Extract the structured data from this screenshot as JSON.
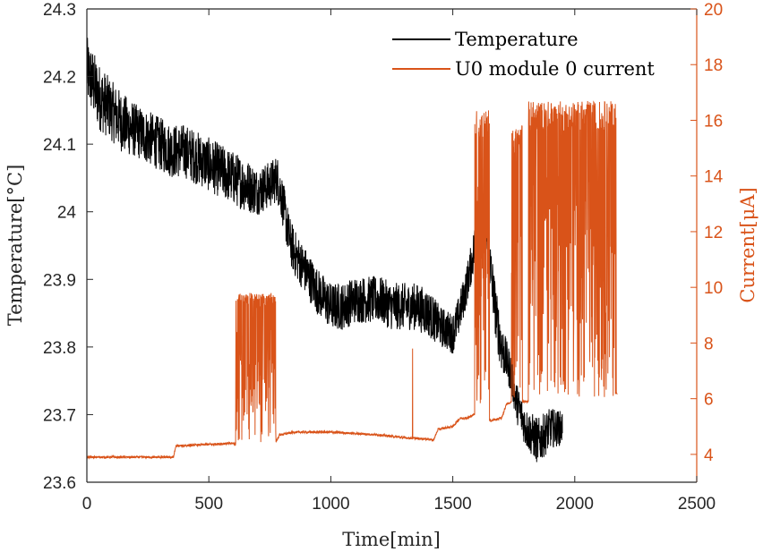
{
  "chart_data": {
    "type": "line",
    "xlabel": "Time[min]",
    "ylabel_left": "Temperature[°C]",
    "ylabel_right": "Current[μA]",
    "xlim": [
      0,
      2500
    ],
    "ylim_left": [
      23.6,
      24.3
    ],
    "ylim_right": [
      3,
      20
    ],
    "x_ticks": [
      "0",
      "500",
      "1000",
      "1500",
      "2000",
      "2500"
    ],
    "y_ticks_left": [
      "23.6",
      "23.7",
      "23.8",
      "23.9",
      "24",
      "24.1",
      "24.2",
      "24.3"
    ],
    "y_ticks_right": [
      "4",
      "6",
      "8",
      "10",
      "12",
      "14",
      "16",
      "18",
      "20"
    ],
    "legend_position": "top-right",
    "grid": false,
    "colors": {
      "temperature": "#000000",
      "current": "#d95319",
      "axis": "#262626"
    },
    "series": [
      {
        "name": "Temperature",
        "axis": "left",
        "x": [
          0,
          50,
          100,
          150,
          200,
          250,
          300,
          350,
          400,
          450,
          500,
          550,
          600,
          650,
          700,
          750,
          780,
          800,
          830,
          850,
          900,
          950,
          1000,
          1050,
          1100,
          1150,
          1200,
          1250,
          1300,
          1350,
          1400,
          1450,
          1500,
          1520,
          1550,
          1580,
          1600,
          1620,
          1640,
          1660,
          1680,
          1700,
          1720,
          1740,
          1760,
          1800,
          1850,
          1900,
          1950
        ],
        "mid": [
          24.21,
          24.17,
          24.15,
          24.13,
          24.12,
          24.11,
          24.1,
          24.09,
          24.09,
          24.08,
          24.07,
          24.06,
          24.05,
          24.04,
          24.03,
          24.04,
          24.05,
          24.02,
          23.96,
          23.94,
          23.91,
          23.88,
          23.86,
          23.86,
          23.87,
          23.87,
          23.87,
          23.86,
          23.86,
          23.86,
          23.85,
          23.83,
          23.82,
          23.84,
          23.88,
          23.93,
          23.97,
          23.99,
          23.96,
          23.9,
          23.84,
          23.8,
          23.78,
          23.76,
          23.72,
          23.68,
          23.66,
          23.68,
          23.68
        ],
        "band": [
          0.05,
          0.05,
          0.045,
          0.045,
          0.04,
          0.04,
          0.04,
          0.04,
          0.04,
          0.04,
          0.04,
          0.04,
          0.04,
          0.04,
          0.035,
          0.035,
          0.035,
          0.035,
          0.035,
          0.035,
          0.035,
          0.035,
          0.035,
          0.035,
          0.035,
          0.035,
          0.035,
          0.035,
          0.035,
          0.035,
          0.035,
          0.03,
          0.03,
          0.03,
          0.03,
          0.03,
          0.04,
          0.04,
          0.04,
          0.04,
          0.04,
          0.04,
          0.03,
          0.03,
          0.03,
          0.03,
          0.035,
          0.03,
          0.025
        ]
      },
      {
        "name": "U0 module 0 current",
        "axis": "right",
        "baseline_x": [
          0,
          355,
          365,
          600,
          640,
          700,
          760,
          790,
          850,
          900,
          1000,
          1100,
          1200,
          1300,
          1400,
          1420,
          1440,
          1500,
          1530,
          1560,
          1600,
          1650,
          1700,
          1720,
          1750,
          1780,
          1800,
          1850,
          1900,
          1950,
          2000,
          2050,
          2100,
          2150,
          2175
        ],
        "baseline_y": [
          3.9,
          3.9,
          4.3,
          4.4,
          4.2,
          4.1,
          4.2,
          4.7,
          4.8,
          4.8,
          4.8,
          4.75,
          4.7,
          4.6,
          4.55,
          4.5,
          4.9,
          5.0,
          5.3,
          5.3,
          5.5,
          5.2,
          5.3,
          5.8,
          5.9,
          5.9,
          5.9,
          5.9,
          6.0,
          6.0,
          6.0,
          6.1,
          6.1,
          6.1,
          6.2
        ],
        "spike_bursts": [
          {
            "x_start": 610,
            "x_end": 775,
            "y_low": 4.4,
            "y_high": 9.8
          },
          {
            "x_start": 1590,
            "x_end": 1650,
            "y_low": 5.3,
            "y_high": 16.4
          },
          {
            "x_start": 1740,
            "x_end": 1785,
            "y_low": 6.0,
            "y_high": 15.8
          },
          {
            "x_start": 1810,
            "x_end": 2170,
            "y_low": 6.0,
            "y_high": 16.7
          }
        ],
        "isolated_spikes": [
          {
            "x": 1335,
            "y": 7.8
          }
        ]
      }
    ]
  }
}
